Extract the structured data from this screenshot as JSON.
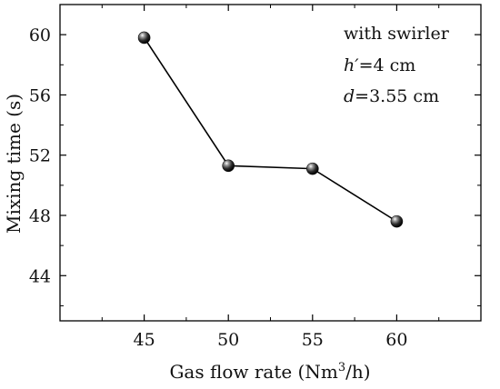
{
  "chart_data": {
    "type": "line",
    "x": [
      45,
      50,
      55,
      60
    ],
    "series": [
      {
        "values": [
          59.8,
          51.3,
          51.1,
          47.6
        ]
      }
    ],
    "xlabel": "Gas flow rate (Nm3/h)",
    "xlabel_parts": {
      "main": "Gas flow rate (Nm",
      "sup": "3",
      "tail": "/h)"
    },
    "ylabel": "Mixing time (s)",
    "xlim": [
      40,
      65
    ],
    "ylim": [
      41,
      62
    ],
    "xticks": [
      45,
      50,
      55,
      60
    ],
    "yticks": [
      44,
      48,
      52,
      56,
      60
    ],
    "grid": false,
    "legend": "none",
    "annotations": [
      {
        "text": "with swirler"
      },
      {
        "italic": "h′",
        "rest": "=4 cm"
      },
      {
        "italic": "d",
        "rest": "=3.55 cm"
      }
    ],
    "line_color": "#000000",
    "marker_color": "#111111"
  }
}
